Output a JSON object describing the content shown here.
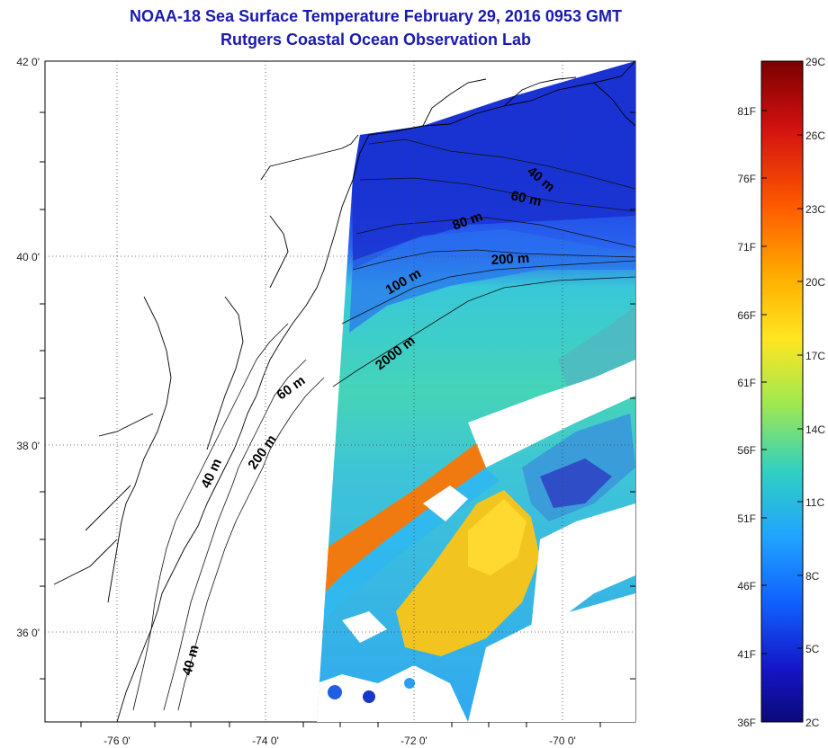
{
  "title": {
    "line1": "NOAA-18 Sea Surface Temperature February 29, 2016 0953 GMT",
    "line2": "Rutgers Coastal Ocean Observation Lab"
  },
  "map": {
    "lon_ticks": [
      "-76 0'",
      "-74 0'",
      "-72 0'",
      "-70 0'"
    ],
    "lat_ticks": [
      "42 0'",
      "40 0'",
      "38 0'",
      "36 0'"
    ],
    "contours": [
      "40 m",
      "60 m",
      "80 m",
      "200 m",
      "100 m",
      "2000 m",
      "60 m",
      "200 m",
      "40 m",
      "40 m"
    ]
  },
  "colorbar": {
    "fahrenheit": [
      "81F",
      "76F",
      "71F",
      "66F",
      "61F",
      "56F",
      "51F",
      "46F",
      "41F",
      "36F"
    ],
    "celsius": [
      "29C",
      "26C",
      "23C",
      "20C",
      "17C",
      "14C",
      "11C",
      "8C",
      "5C",
      "2C"
    ],
    "colors": [
      "#8b0000",
      "#d81010",
      "#ff5a00",
      "#ffa000",
      "#ffe020",
      "#b0e840",
      "#40d0b0",
      "#20a8ff",
      "#1060ff",
      "#1010c8",
      "#0a0a80"
    ]
  }
}
